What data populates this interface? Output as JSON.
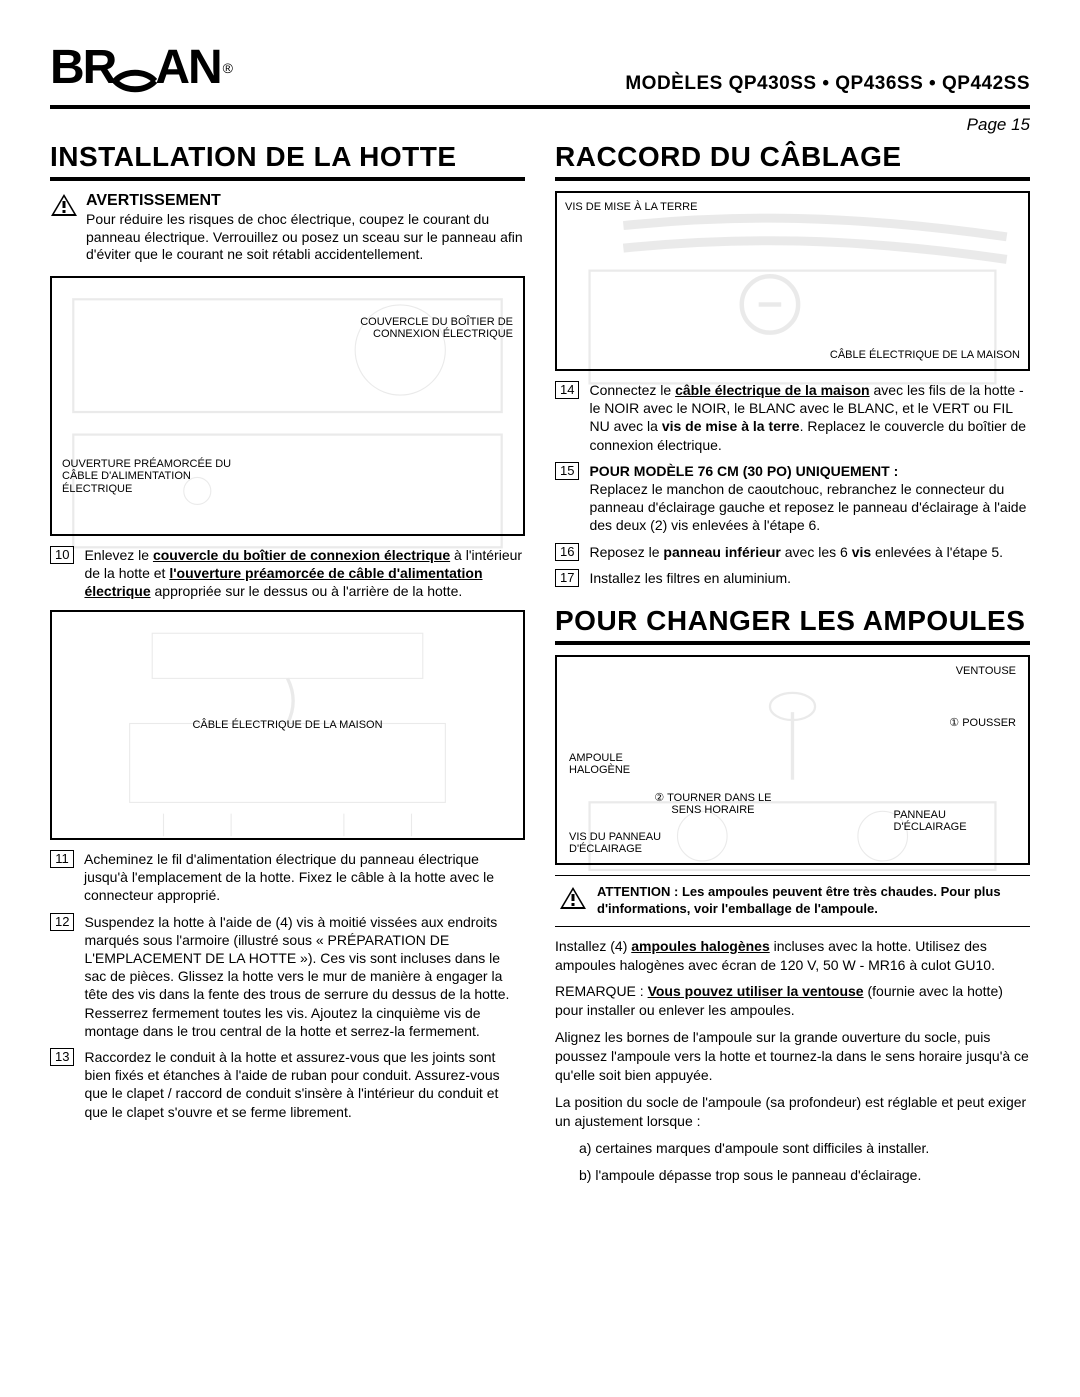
{
  "logo_text_left": "BR",
  "logo_text_right": "AN",
  "logo_reg": "®",
  "models_line": "MODÈLES  QP430SS • QP436SS • QP442SS",
  "page_label": "Page 15",
  "left": {
    "title": "INSTALLATION DE LA HOTTE",
    "warn_heading": "AVERTISSEMENT",
    "warn_body": "Pour réduire les risques de choc électrique, coupez le courant du panneau électrique. Verrouillez ou posez un sceau sur le panneau afin d'éviter que le courant ne soit rétabli accidentellement.",
    "fig1_label1": "COUVERCLE DU BOÎTIER DE CONNEXION ÉLECTRIQUE",
    "fig1_label2": "OUVERTURE PRÉAMORCÉE DU CÂBLE D'ALIMENTATION ÉLECTRIQUE",
    "step10_num": "10",
    "step10": "Enlevez le <span class='u'>couvercle du boîtier de connexion électrique</span> à l'intérieur de la hotte et <span class='u'>l'ouverture préamorcée de câble d'alimentation électrique</span> appropriée sur le dessus ou à l'arrière de la hotte.",
    "fig2_label": "CÂBLE ÉLECTRIQUE DE LA MAISON",
    "step11_num": "11",
    "step11": "Acheminez le fil d'alimentation électrique du panneau électrique jusqu'à l'emplacement de la hotte. Fixez le câble à la hotte avec le connecteur approprié.",
    "step12_num": "12",
    "step12": "Suspendez la hotte à l'aide de (4) vis à moitié vissées aux endroits marqués sous l'armoire (illustré sous « PRÉPARATION DE L'EMPLACEMENT DE LA HOTTE »). Ces vis sont incluses dans le sac de pièces. Glissez la hotte vers le mur de manière à engager la tête des vis dans la fente des trous de serrure du dessus de la hotte. Resserrez fermement toutes les vis. Ajoutez la cinquième vis de montage dans le trou central de la hotte et serrez-la fermement.",
    "step13_num": "13",
    "step13": "Raccordez le conduit à la hotte et assurez-vous que les joints sont bien fixés et étanches à l'aide de ruban pour conduit. Assurez-vous que le clapet / raccord de conduit s'insère à l'intérieur du conduit et que le clapet s'ouvre et se ferme librement."
  },
  "right": {
    "title1": "RACCORD DU CÂBLAGE",
    "fig3_label_tl": "VIS DE MISE À LA TERRE",
    "fig3_label_br": "CÂBLE ÉLECTRIQUE DE LA MAISON",
    "step14_num": "14",
    "step14": "Connectez le <span class='u'>câble électrique de la maison</span> avec les fils de la hotte - le NOIR avec le NOIR, le BLANC avec le BLANC, et le VERT ou FIL NU avec la <b>vis de mise à la terre</b>. Replacez le couvercle du boîtier de connexion électrique.",
    "step15_num": "15",
    "step15_lead": "POUR MODÈLE 76 CM (30 PO) UNIQUEMENT :",
    "step15_body": "Replacez le manchon de caoutchouc, rebranchez le connecteur du panneau d'éclairage gauche et reposez le panneau d'éclairage à l'aide des deux (2) vis enlevées à l'étape 6.",
    "step16_num": "16",
    "step16": "Reposez le <b>panneau inférieur</b> avec les 6 <b>vis</b> enlevées à l'étape 5.",
    "step17_num": "17",
    "step17": "Installez les filtres en aluminium.",
    "title2": "POUR CHANGER LES AMPOULES",
    "fig4_labels": {
      "ventouse": "VENTOUSE",
      "pousser": "① POUSSER",
      "ampoule": "AMPOULE HALOGÈNE",
      "tourner": "② TOURNER DANS LE SENS HORAIRE",
      "vis": "VIS DU PANNEAU D'ÉCLAIRAGE",
      "panneau": "PANNEAU D'ÉCLAIRAGE"
    },
    "caution": "ATTENTION : Les ampoules peuvent être très chaudes. Pour plus d'informations, voir l'emballage de l'ampoule.",
    "para1": "Installez (4) <span class='u'>ampoules halogènes</span> incluses avec la hotte. Utilisez des ampoules halogènes avec écran de 120 V, 50 W - MR16 à culot GU10.",
    "para2": "REMARQUE : <span class='u'>Vous pouvez utiliser la ventouse</span> (fournie avec la hotte) pour installer ou enlever les ampoules.",
    "para3": "Alignez les bornes de l'ampoule sur la grande ouverture du socle, puis poussez l'ampoule vers la hotte et tournez-la dans le sens horaire jusqu'à ce qu'elle soit bien appuyée.",
    "para4": "La position du socle de l'ampoule (sa profondeur) est réglable et peut exiger un ajustement lorsque :",
    "li_a": "a) certaines marques d'ampoule sont difficiles à installer.",
    "li_b": "b) l'ampoule dépasse trop sous le panneau d'éclairage."
  }
}
